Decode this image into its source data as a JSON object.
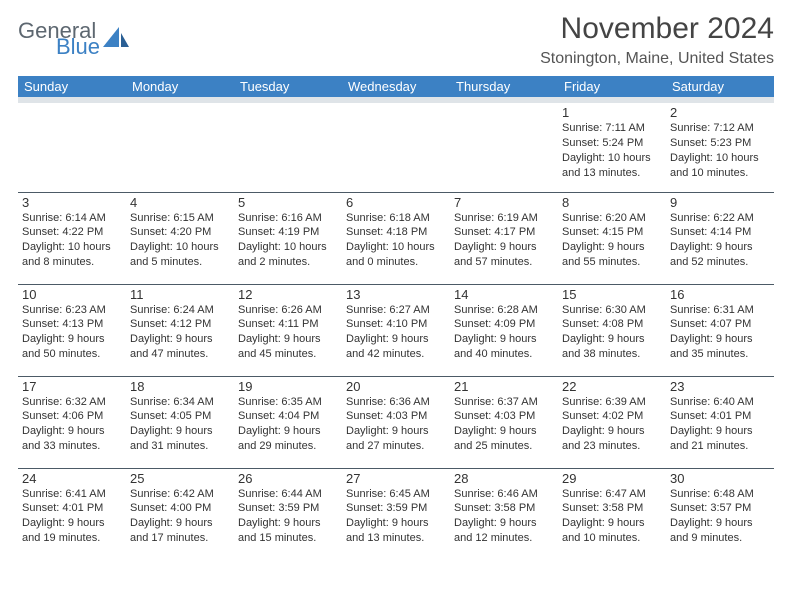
{
  "logo": {
    "part1": "General",
    "part2": "Blue"
  },
  "title": "November 2024",
  "location": "Stonington, Maine, United States",
  "colors": {
    "header_bg": "#3c81c4",
    "header_sub_bg": "#dfe4e8",
    "rule": "#4c5a66"
  },
  "dayHeaders": [
    "Sunday",
    "Monday",
    "Tuesday",
    "Wednesday",
    "Thursday",
    "Friday",
    "Saturday"
  ],
  "weeks": [
    [
      null,
      null,
      null,
      null,
      null,
      {
        "n": "1",
        "sunrise": "Sunrise: 7:11 AM",
        "sunset": "Sunset: 5:24 PM",
        "daylight": "Daylight: 10 hours and 13 minutes."
      },
      {
        "n": "2",
        "sunrise": "Sunrise: 7:12 AM",
        "sunset": "Sunset: 5:23 PM",
        "daylight": "Daylight: 10 hours and 10 minutes."
      }
    ],
    [
      {
        "n": "3",
        "sunrise": "Sunrise: 6:14 AM",
        "sunset": "Sunset: 4:22 PM",
        "daylight": "Daylight: 10 hours and 8 minutes."
      },
      {
        "n": "4",
        "sunrise": "Sunrise: 6:15 AM",
        "sunset": "Sunset: 4:20 PM",
        "daylight": "Daylight: 10 hours and 5 minutes."
      },
      {
        "n": "5",
        "sunrise": "Sunrise: 6:16 AM",
        "sunset": "Sunset: 4:19 PM",
        "daylight": "Daylight: 10 hours and 2 minutes."
      },
      {
        "n": "6",
        "sunrise": "Sunrise: 6:18 AM",
        "sunset": "Sunset: 4:18 PM",
        "daylight": "Daylight: 10 hours and 0 minutes."
      },
      {
        "n": "7",
        "sunrise": "Sunrise: 6:19 AM",
        "sunset": "Sunset: 4:17 PM",
        "daylight": "Daylight: 9 hours and 57 minutes."
      },
      {
        "n": "8",
        "sunrise": "Sunrise: 6:20 AM",
        "sunset": "Sunset: 4:15 PM",
        "daylight": "Daylight: 9 hours and 55 minutes."
      },
      {
        "n": "9",
        "sunrise": "Sunrise: 6:22 AM",
        "sunset": "Sunset: 4:14 PM",
        "daylight": "Daylight: 9 hours and 52 minutes."
      }
    ],
    [
      {
        "n": "10",
        "sunrise": "Sunrise: 6:23 AM",
        "sunset": "Sunset: 4:13 PM",
        "daylight": "Daylight: 9 hours and 50 minutes."
      },
      {
        "n": "11",
        "sunrise": "Sunrise: 6:24 AM",
        "sunset": "Sunset: 4:12 PM",
        "daylight": "Daylight: 9 hours and 47 minutes."
      },
      {
        "n": "12",
        "sunrise": "Sunrise: 6:26 AM",
        "sunset": "Sunset: 4:11 PM",
        "daylight": "Daylight: 9 hours and 45 minutes."
      },
      {
        "n": "13",
        "sunrise": "Sunrise: 6:27 AM",
        "sunset": "Sunset: 4:10 PM",
        "daylight": "Daylight: 9 hours and 42 minutes."
      },
      {
        "n": "14",
        "sunrise": "Sunrise: 6:28 AM",
        "sunset": "Sunset: 4:09 PM",
        "daylight": "Daylight: 9 hours and 40 minutes."
      },
      {
        "n": "15",
        "sunrise": "Sunrise: 6:30 AM",
        "sunset": "Sunset: 4:08 PM",
        "daylight": "Daylight: 9 hours and 38 minutes."
      },
      {
        "n": "16",
        "sunrise": "Sunrise: 6:31 AM",
        "sunset": "Sunset: 4:07 PM",
        "daylight": "Daylight: 9 hours and 35 minutes."
      }
    ],
    [
      {
        "n": "17",
        "sunrise": "Sunrise: 6:32 AM",
        "sunset": "Sunset: 4:06 PM",
        "daylight": "Daylight: 9 hours and 33 minutes."
      },
      {
        "n": "18",
        "sunrise": "Sunrise: 6:34 AM",
        "sunset": "Sunset: 4:05 PM",
        "daylight": "Daylight: 9 hours and 31 minutes."
      },
      {
        "n": "19",
        "sunrise": "Sunrise: 6:35 AM",
        "sunset": "Sunset: 4:04 PM",
        "daylight": "Daylight: 9 hours and 29 minutes."
      },
      {
        "n": "20",
        "sunrise": "Sunrise: 6:36 AM",
        "sunset": "Sunset: 4:03 PM",
        "daylight": "Daylight: 9 hours and 27 minutes."
      },
      {
        "n": "21",
        "sunrise": "Sunrise: 6:37 AM",
        "sunset": "Sunset: 4:03 PM",
        "daylight": "Daylight: 9 hours and 25 minutes."
      },
      {
        "n": "22",
        "sunrise": "Sunrise: 6:39 AM",
        "sunset": "Sunset: 4:02 PM",
        "daylight": "Daylight: 9 hours and 23 minutes."
      },
      {
        "n": "23",
        "sunrise": "Sunrise: 6:40 AM",
        "sunset": "Sunset: 4:01 PM",
        "daylight": "Daylight: 9 hours and 21 minutes."
      }
    ],
    [
      {
        "n": "24",
        "sunrise": "Sunrise: 6:41 AM",
        "sunset": "Sunset: 4:01 PM",
        "daylight": "Daylight: 9 hours and 19 minutes."
      },
      {
        "n": "25",
        "sunrise": "Sunrise: 6:42 AM",
        "sunset": "Sunset: 4:00 PM",
        "daylight": "Daylight: 9 hours and 17 minutes."
      },
      {
        "n": "26",
        "sunrise": "Sunrise: 6:44 AM",
        "sunset": "Sunset: 3:59 PM",
        "daylight": "Daylight: 9 hours and 15 minutes."
      },
      {
        "n": "27",
        "sunrise": "Sunrise: 6:45 AM",
        "sunset": "Sunset: 3:59 PM",
        "daylight": "Daylight: 9 hours and 13 minutes."
      },
      {
        "n": "28",
        "sunrise": "Sunrise: 6:46 AM",
        "sunset": "Sunset: 3:58 PM",
        "daylight": "Daylight: 9 hours and 12 minutes."
      },
      {
        "n": "29",
        "sunrise": "Sunrise: 6:47 AM",
        "sunset": "Sunset: 3:58 PM",
        "daylight": "Daylight: 9 hours and 10 minutes."
      },
      {
        "n": "30",
        "sunrise": "Sunrise: 6:48 AM",
        "sunset": "Sunset: 3:57 PM",
        "daylight": "Daylight: 9 hours and 9 minutes."
      }
    ]
  ]
}
